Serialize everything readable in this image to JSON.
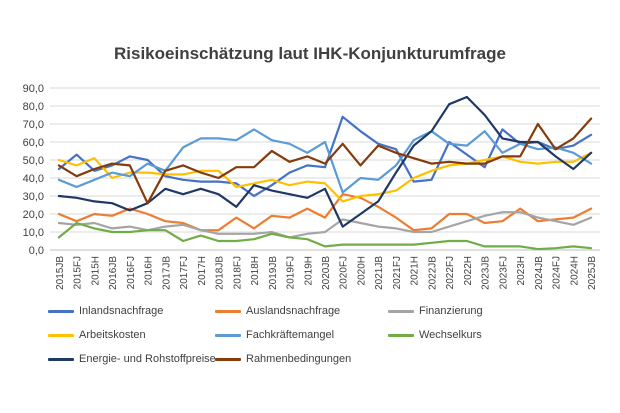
{
  "chart_data": {
    "type": "line",
    "title": "Risikoeinschätzung laut IHK-Konjunkturumfrage",
    "xlabel": "",
    "ylabel": "",
    "ylim": [
      0,
      90
    ],
    "yticks": [
      "0,0",
      "10,0",
      "20,0",
      "30,0",
      "40,0",
      "50,0",
      "60,0",
      "70,0",
      "80,0",
      "90,0"
    ],
    "grid": true,
    "legend_position": "bottom",
    "categories": [
      "2015JB",
      "2015FJ",
      "2015H",
      "2016JB",
      "2016FJ",
      "2016H",
      "2017JB",
      "2017FJ",
      "2017H",
      "2018JB",
      "2018FJ",
      "2018H",
      "2019JB",
      "2019FJ",
      "2019H",
      "2020JB",
      "2020FJ",
      "2020H",
      "2021JB",
      "2021FJ",
      "2021H",
      "2022JB",
      "2022FJ",
      "2022H",
      "2023JB",
      "2023FJ",
      "2023H",
      "2024JB",
      "2024FJ",
      "2024H",
      "2025JB"
    ],
    "x_labels": [
      "2015JB",
      "2015FJ",
      "2015H",
      "2016JB",
      "2016FJ",
      "2016H",
      "2017JB",
      "2017FJ",
      "2017H",
      "2018JB",
      "2018FJ",
      "2018H",
      "2019JB",
      "2019FJ",
      "2019H",
      "2020JB",
      "2020FJ",
      "2020H",
      "2021JB",
      "2021FJ",
      "2021H",
      "2022JB",
      "2022FJ",
      "2022H",
      "2023JB",
      "2023FJ",
      "2023H",
      "2024JB",
      "2024FJ",
      "2024H",
      "2025JB"
    ],
    "series": [
      {
        "name": "Inlandsnachfrage",
        "color": "#4472C4",
        "values": [
          45,
          53,
          44,
          47,
          52,
          50,
          41,
          39,
          38,
          38,
          37,
          30,
          36,
          43,
          47,
          46,
          74,
          66,
          59,
          56,
          38,
          39,
          60,
          53,
          46,
          67,
          59,
          60,
          56,
          58,
          64
        ]
      },
      {
        "name": "Auslandsnachfrage",
        "color": "#ED7D31",
        "values": [
          20,
          16,
          20,
          19,
          23,
          20,
          16,
          15,
          11,
          11,
          18,
          12,
          19,
          18,
          23,
          18,
          31,
          29,
          24,
          18,
          11,
          12,
          20,
          20,
          15,
          16,
          23,
          16,
          17,
          18,
          23
        ]
      },
      {
        "name": "Finanzierung",
        "color": "#A5A5A5",
        "values": [
          15,
          14,
          15,
          12,
          13,
          11,
          13,
          14,
          11,
          9,
          9,
          9,
          10,
          7,
          9,
          10,
          17,
          15,
          13,
          12,
          10,
          10,
          13,
          16,
          19,
          21,
          21,
          18,
          16,
          14,
          18
        ]
      },
      {
        "name": "Arbeitskosten",
        "color": "#FFC000",
        "values": [
          50,
          47,
          51,
          40,
          43,
          43,
          42,
          42,
          44,
          44,
          35,
          37,
          39,
          36,
          38,
          37,
          27,
          30,
          31,
          33,
          40,
          44,
          47,
          48,
          50,
          52,
          49,
          48,
          49,
          49,
          54
        ]
      },
      {
        "name": "Fachkräftemangel",
        "color": "#5B9BD5",
        "values": [
          39,
          35,
          39,
          43,
          41,
          48,
          44,
          57,
          62,
          62,
          61,
          67,
          61,
          59,
          54,
          60,
          32,
          40,
          39,
          47,
          61,
          66,
          59,
          58,
          66,
          54,
          59,
          56,
          57,
          54,
          48
        ]
      },
      {
        "name": "Wechselkurs",
        "color": "#70AD47",
        "values": [
          7,
          15,
          12,
          10,
          10,
          11,
          11,
          5,
          8,
          5,
          5,
          6,
          9,
          7,
          6,
          2,
          3,
          3,
          3,
          3,
          3,
          4,
          5,
          5,
          2,
          2,
          2,
          0.5,
          1,
          2,
          1
        ]
      },
      {
        "name": "Energie- und Rohstoffpreise",
        "color": "#203864",
        "values": [
          30,
          29,
          27,
          26,
          22,
          26,
          34,
          31,
          34,
          31,
          24,
          36,
          33,
          31,
          29,
          34,
          13,
          20,
          27,
          43,
          58,
          66,
          81,
          85,
          75,
          62,
          60,
          60,
          52,
          45,
          54
        ]
      },
      {
        "name": "Rahmenbedingungen",
        "color": "#843C0C",
        "values": [
          47,
          41,
          45,
          48,
          47,
          26,
          44,
          47,
          43,
          40,
          46,
          46,
          55,
          49,
          52,
          48,
          59,
          47,
          58,
          54,
          51,
          48,
          49,
          48,
          48,
          52,
          52,
          70,
          56,
          62,
          73
        ]
      }
    ],
    "legend_rows": [
      [
        "Inlandsnachfrage",
        "Auslandsnachfrage",
        "Finanzierung"
      ],
      [
        "Arbeitskosten",
        "Fachkräftemangel",
        "Wechselkurs"
      ],
      [
        "Energie- und Rohstoffpreise",
        "Rahmenbedingungen"
      ]
    ]
  }
}
